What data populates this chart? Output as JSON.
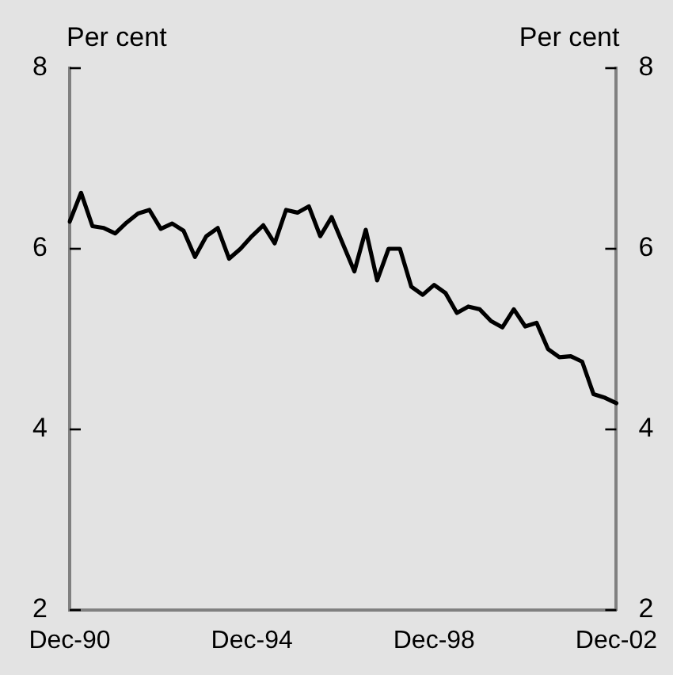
{
  "chart_data": {
    "type": "line",
    "ylabel": "Per cent",
    "y2label": "Per cent",
    "categories": [
      "Dec-90",
      null,
      null,
      null,
      null,
      null,
      null,
      null,
      null,
      null,
      null,
      null,
      null,
      null,
      null,
      null,
      "Dec-94",
      null,
      null,
      null,
      null,
      null,
      null,
      null,
      null,
      null,
      null,
      null,
      null,
      null,
      null,
      null,
      "Dec-98",
      null,
      null,
      null,
      null,
      null,
      null,
      null,
      null,
      null,
      null,
      null,
      null,
      null,
      null,
      null,
      "Dec-02"
    ],
    "series": [
      {
        "color": "#000000",
        "values": [
          6.3,
          6.62,
          6.25,
          6.23,
          6.17,
          6.29,
          6.39,
          6.43,
          6.22,
          6.28,
          6.2,
          5.91,
          6.14,
          6.23,
          5.89,
          6.0,
          6.14,
          6.26,
          6.06,
          6.43,
          6.4,
          6.47,
          6.14,
          6.35,
          6.05,
          5.75,
          6.21,
          5.65,
          6.0,
          6.0,
          5.58,
          5.49,
          5.6,
          5.51,
          5.29,
          5.36,
          5.33,
          5.2,
          5.13,
          5.33,
          5.14,
          5.18,
          4.89,
          4.8,
          4.81,
          4.75,
          4.39,
          4.35,
          4.29
        ]
      }
    ],
    "ylim": [
      2,
      8
    ],
    "yticks": [
      2,
      4,
      6,
      8
    ],
    "y2lim": [
      2,
      8
    ],
    "y2ticks": [
      2,
      4,
      6,
      8
    ],
    "grid": false,
    "legend": false,
    "marker": "none",
    "line_style": "solid"
  }
}
